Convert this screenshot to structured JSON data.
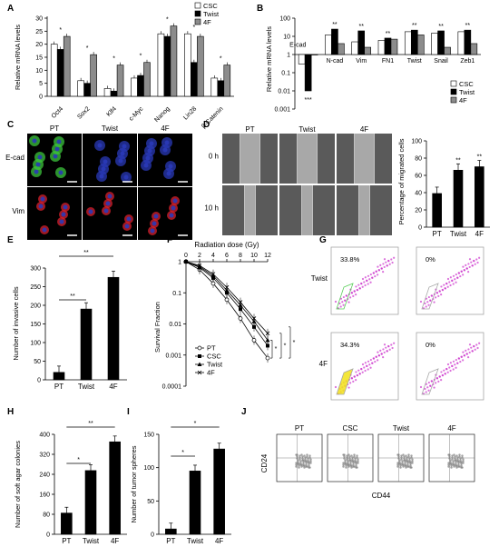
{
  "figure": {
    "panels": {
      "A": "A",
      "B": "B",
      "C": "C",
      "D": "D",
      "E": "E",
      "F": "F",
      "G": "G",
      "H": "H",
      "I": "I",
      "J": "J"
    },
    "colors": {
      "csc": "#ffffff",
      "twist": "#000000",
      "f4": "#8c8c8c",
      "green": "#3cc43c",
      "blue": "#2a3ab8",
      "red": "#d8202c",
      "magenta": "#cc33cc",
      "yellow": "#f2e21a"
    },
    "panelA": {
      "ylabel": "Relative mRNA levels",
      "legend": [
        "CSC",
        "Twist",
        "4F"
      ],
      "yticks": [
        "0",
        "5",
        "10",
        "15",
        "20",
        "25",
        "30"
      ]
    },
    "panelB": {
      "ylabel": "Relative mRNA levels",
      "legend": [
        "CSC",
        "Twist",
        "4F"
      ],
      "yticks": [
        "100",
        "10",
        "1",
        "0.1",
        "0.01",
        "0.001"
      ]
    },
    "panelC": {
      "columns": [
        "PT",
        "Twist",
        "4F"
      ],
      "rows": [
        "E-cad",
        "Vim"
      ]
    },
    "panelD": {
      "columns": [
        "PT",
        "Twist",
        "4F"
      ],
      "rows": [
        "0 h",
        "10 h"
      ],
      "ylabel": "Percentage of migrated cells"
    },
    "panelE": {
      "ylabel": "Number of invasive cells"
    },
    "panelF": {
      "xlabel": "Radiation dose (Gy)",
      "ylabel": "Survival Fraction",
      "xticks": [
        "0",
        "2",
        "4",
        "6",
        "8",
        "10",
        "12"
      ],
      "yticks": [
        "1",
        "0.1",
        "0.01",
        "0.001",
        "0.0001"
      ],
      "legend": [
        "PT",
        "CSC",
        "Twist",
        "4F"
      ]
    },
    "panelG": {
      "rows": [
        "Twist",
        "4F"
      ],
      "gate_values": [
        "33.8%",
        "0%",
        "34.3%",
        "0%"
      ]
    },
    "panelH": {
      "ylabel": "Number of soft agar colonies"
    },
    "panelI": {
      "ylabel": "Number of tumor spheres"
    },
    "panelJ": {
      "columns": [
        "PT",
        "CSC",
        "Twist",
        "4F"
      ],
      "ylabel": "CD24",
      "xlabel": "CD44"
    },
    "sig": {
      "one": "*",
      "two": "**",
      "three": "***"
    }
  },
  "chart_data": [
    {
      "type": "bar",
      "panel": "A",
      "categories": [
        "Oct4",
        "Sox2",
        "Klf4",
        "c-Myc",
        "Nanog",
        "Lin28",
        "β-Catenin"
      ],
      "series": [
        {
          "name": "CSC",
          "values": [
            20,
            6,
            3,
            7,
            24,
            24,
            7
          ]
        },
        {
          "name": "Twist",
          "values": [
            18,
            5,
            2,
            8,
            23,
            13,
            6
          ]
        },
        {
          "name": "4F",
          "values": [
            23,
            16,
            12,
            13,
            27,
            23,
            12
          ]
        }
      ],
      "ylim": [
        0,
        30
      ]
    },
    {
      "type": "bar",
      "panel": "B",
      "log_scale": true,
      "categories": [
        "E-cad",
        "N-cad",
        "Vim",
        "FN1",
        "Twist",
        "Snail",
        "Zeb1"
      ],
      "series": [
        {
          "name": "CSC",
          "values": [
            0.3,
            12,
            5,
            6,
            18,
            15,
            18
          ]
        },
        {
          "name": "Twist",
          "values": [
            0.01,
            25,
            20,
            8,
            22,
            20,
            22
          ]
        },
        {
          "name": "4F",
          "values": [
            1,
            4,
            2.5,
            7,
            12,
            2.5,
            4
          ]
        }
      ],
      "ylim": [
        0.001,
        100
      ]
    },
    {
      "type": "bar",
      "panel": "D",
      "categories": [
        "PT",
        "Twist",
        "4F"
      ],
      "values": [
        39,
        66,
        70
      ],
      "yticks": [
        "0",
        "20",
        "40",
        "60",
        "80",
        "100"
      ],
      "ylim": [
        0,
        100
      ]
    },
    {
      "type": "bar",
      "panel": "E",
      "categories": [
        "PT",
        "Twist",
        "4F"
      ],
      "values": [
        20,
        190,
        275
      ],
      "yticks": [
        "0",
        "50",
        "100",
        "150",
        "200",
        "250",
        "300"
      ],
      "ylim": [
        0,
        300
      ]
    },
    {
      "type": "line",
      "panel": "F",
      "log_scale": true,
      "x": [
        0,
        2,
        4,
        6,
        8,
        10,
        12
      ],
      "series": [
        {
          "name": "PT",
          "values": [
            1,
            0.55,
            0.2,
            0.06,
            0.015,
            0.003,
            0.0008
          ]
        },
        {
          "name": "CSC",
          "values": [
            1,
            0.65,
            0.3,
            0.1,
            0.03,
            0.008,
            0.002
          ]
        },
        {
          "name": "Twist",
          "values": [
            1,
            0.7,
            0.35,
            0.12,
            0.04,
            0.012,
            0.003
          ]
        },
        {
          "name": "4F",
          "values": [
            1,
            0.75,
            0.4,
            0.15,
            0.05,
            0.015,
            0.005
          ]
        }
      ],
      "ylim": [
        0.0001,
        1
      ]
    },
    {
      "type": "bar",
      "panel": "H",
      "categories": [
        "PT",
        "Twist",
        "4F"
      ],
      "values": [
        85,
        255,
        370
      ],
      "yticks": [
        "0",
        "80",
        "160",
        "240",
        "320",
        "400"
      ],
      "ylim": [
        0,
        400
      ]
    },
    {
      "type": "bar",
      "panel": "I",
      "categories": [
        "PT",
        "Twist",
        "4F"
      ],
      "values": [
        8,
        95,
        128
      ],
      "yticks": [
        "0",
        "50",
        "100",
        "150"
      ],
      "ylim": [
        0,
        150
      ]
    }
  ]
}
